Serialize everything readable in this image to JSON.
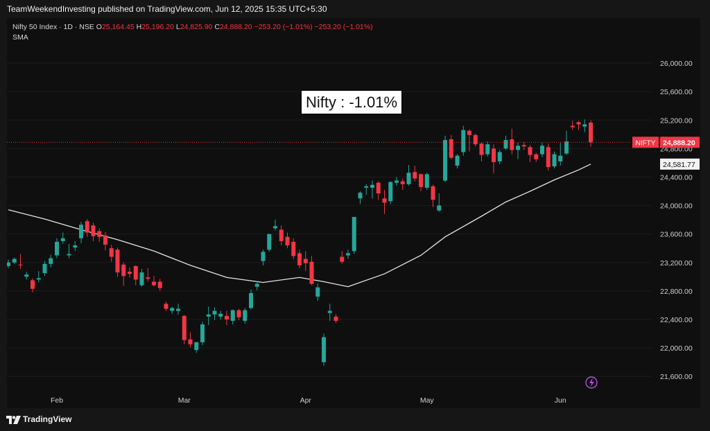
{
  "header": {
    "publish_line": "TeamWeekendInvesting published on TradingView.com, Jun 12, 2025 15:35 UTC+5:30"
  },
  "legend": {
    "symbol": "Nifty 50 Index · 1D · NSE",
    "o_label": "O",
    "o_value": "25,164.45",
    "h_label": "H",
    "h_value": "25,196.20",
    "l_label": "L",
    "l_value": "24,825.90",
    "c_label": "C",
    "c_value": "24,888.20",
    "change": "−253.20 (−1.01%)",
    "change2": "−253.20 (−1.01%)",
    "indicator": "SMA"
  },
  "annotation": {
    "text": "Nifty : -1.01%"
  },
  "footer": {
    "brand": "TradingView"
  },
  "colors": {
    "up": "#26a69a",
    "down": "#f23645",
    "sma": "#e6e6e6",
    "background": "#0f0f0f",
    "page": "#161616"
  },
  "chart_data": {
    "type": "candlestick",
    "symbol": "Nifty 50 Index",
    "interval": "1D",
    "ylim": [
      21300,
      26400
    ],
    "y_ticks": [
      21600,
      22000,
      22400,
      22800,
      23200,
      23600,
      24000,
      24400,
      24800,
      25200,
      25600,
      26000
    ],
    "y_tick_labels": [
      "21,600.00",
      "22,000.00",
      "22,400.00",
      "22,800.00",
      "23,200.00",
      "23,600.00",
      "24,000.00",
      "24,400.00",
      "24,800.00",
      "25,200.00",
      "25,600.00",
      "26,000.00"
    ],
    "x_labels": [
      {
        "label": "Feb",
        "index": 8
      },
      {
        "label": "Mar",
        "index": 29
      },
      {
        "label": "Apr",
        "index": 49
      },
      {
        "label": "May",
        "index": 69
      },
      {
        "label": "Jun",
        "index": 91
      }
    ],
    "candles": [
      [
        23150,
        23240,
        23120,
        23200
      ],
      [
        23200,
        23270,
        23180,
        23250
      ],
      [
        23170,
        23320,
        23110,
        23160
      ],
      [
        23000,
        23070,
        22960,
        23030
      ],
      [
        22950,
        22980,
        22780,
        22830
      ],
      [
        22960,
        23080,
        22920,
        22980
      ],
      [
        23050,
        23220,
        23010,
        23180
      ],
      [
        23180,
        23310,
        23130,
        23260
      ],
      [
        23300,
        23540,
        23260,
        23490
      ],
      [
        23500,
        23620,
        23460,
        23540
      ],
      [
        23300,
        23460,
        23260,
        23320
      ],
      [
        23410,
        23500,
        23360,
        23440
      ],
      [
        23540,
        23770,
        23470,
        23730
      ],
      [
        23780,
        23810,
        23560,
        23620
      ],
      [
        23720,
        23760,
        23500,
        23570
      ],
      [
        23640,
        23680,
        23490,
        23560
      ],
      [
        23580,
        23630,
        23370,
        23450
      ],
      [
        23400,
        23450,
        23210,
        23280
      ],
      [
        23380,
        23410,
        23000,
        23060
      ],
      [
        23170,
        23200,
        22870,
        23010
      ],
      [
        23070,
        23130,
        22990,
        23040
      ],
      [
        23150,
        23160,
        22880,
        22960
      ],
      [
        22880,
        23110,
        22860,
        23060
      ],
      [
        22990,
        23120,
        22930,
        22970
      ],
      [
        22930,
        23010,
        22860,
        22880
      ],
      [
        22930,
        22970,
        22800,
        22840
      ],
      [
        22620,
        22650,
        22520,
        22550
      ],
      [
        22520,
        22580,
        22480,
        22560
      ],
      [
        22520,
        22620,
        22470,
        22550
      ],
      [
        22450,
        22460,
        22050,
        22110
      ],
      [
        22120,
        22220,
        22010,
        22050
      ],
      [
        21970,
        22080,
        21930,
        22080
      ],
      [
        22080,
        22370,
        22040,
        22330
      ],
      [
        22440,
        22580,
        22320,
        22470
      ],
      [
        22470,
        22570,
        22390,
        22520
      ],
      [
        22440,
        22520,
        22400,
        22480
      ],
      [
        22450,
        22520,
        22320,
        22400
      ],
      [
        22380,
        22540,
        22330,
        22530
      ],
      [
        22530,
        22550,
        22390,
        22430
      ],
      [
        22380,
        22560,
        22340,
        22530
      ],
      [
        22560,
        22820,
        22540,
        22770
      ],
      [
        22860,
        22940,
        22810,
        22900
      ],
      [
        23220,
        23380,
        23160,
        23350
      ],
      [
        23380,
        23590,
        23350,
        23600
      ],
      [
        23680,
        23800,
        23650,
        23710
      ],
      [
        23660,
        23720,
        23440,
        23500
      ],
      [
        23560,
        23620,
        23400,
        23440
      ],
      [
        23490,
        23540,
        23250,
        23290
      ],
      [
        23330,
        23380,
        23120,
        23160
      ],
      [
        23250,
        23360,
        23080,
        23190
      ],
      [
        23210,
        23290,
        22880,
        22900
      ],
      [
        22720,
        22910,
        22660,
        22850
      ],
      [
        21800,
        22200,
        21750,
        22150
      ],
      [
        22490,
        22620,
        22380,
        22520
      ],
      [
        22440,
        22470,
        22350,
        22380
      ],
      [
        23280,
        23360,
        23180,
        23210
      ],
      [
        23300,
        23380,
        23250,
        23330
      ],
      [
        23360,
        23840,
        23320,
        23840
      ],
      [
        24100,
        24200,
        24020,
        24180
      ],
      [
        24250,
        24300,
        24150,
        24270
      ],
      [
        24250,
        24350,
        24100,
        24290
      ],
      [
        24320,
        24340,
        24080,
        24170
      ],
      [
        24100,
        24220,
        23880,
        24040
      ],
      [
        24060,
        24340,
        24020,
        24330
      ],
      [
        24320,
        24400,
        24280,
        24350
      ],
      [
        24340,
        24380,
        24220,
        24300
      ],
      [
        24300,
        24570,
        24280,
        24460
      ],
      [
        24470,
        24560,
        24340,
        24380
      ],
      [
        24440,
        24450,
        24200,
        24260
      ],
      [
        24250,
        24460,
        24220,
        24440
      ],
      [
        24270,
        24290,
        23980,
        24080
      ],
      [
        23930,
        24170,
        23910,
        24000
      ],
      [
        24350,
        24980,
        24330,
        24920
      ],
      [
        24930,
        24990,
        24650,
        24670
      ],
      [
        24560,
        24720,
        24520,
        24700
      ],
      [
        24750,
        25120,
        24700,
        25060
      ],
      [
        25050,
        25070,
        24760,
        24990
      ],
      [
        24990,
        25010,
        24830,
        24860
      ],
      [
        24870,
        24890,
        24620,
        24710
      ],
      [
        24720,
        24900,
        24690,
        24860
      ],
      [
        24800,
        24860,
        24450,
        24610
      ],
      [
        24620,
        24780,
        24580,
        24750
      ],
      [
        24800,
        24980,
        24780,
        24920
      ],
      [
        24930,
        25080,
        24720,
        24780
      ],
      [
        24780,
        24880,
        24650,
        24840
      ],
      [
        24850,
        24890,
        24780,
        24830
      ],
      [
        24820,
        24850,
        24610,
        24710
      ],
      [
        24720,
        24740,
        24610,
        24650
      ],
      [
        24720,
        24880,
        24680,
        24840
      ],
      [
        24820,
        24870,
        24490,
        24540
      ],
      [
        24550,
        24760,
        24520,
        24720
      ],
      [
        24620,
        24880,
        24560,
        24700
      ],
      [
        24730,
        25050,
        24710,
        24900
      ],
      [
        25120,
        25190,
        25060,
        25100
      ],
      [
        25170,
        25190,
        25060,
        25140
      ],
      [
        25110,
        25210,
        25030,
        25140
      ],
      [
        25164.45,
        25196.2,
        24825.9,
        24888.2
      ]
    ],
    "sma": [
      [
        0,
        23940
      ],
      [
        6,
        23810
      ],
      [
        12,
        23660
      ],
      [
        18,
        23520
      ],
      [
        24,
        23360
      ],
      [
        30,
        23160
      ],
      [
        36,
        22990
      ],
      [
        42,
        22920
      ],
      [
        48,
        22990
      ],
      [
        52,
        22930
      ],
      [
        56,
        22860
      ],
      [
        62,
        23040
      ],
      [
        68,
        23300
      ],
      [
        72,
        23560
      ],
      [
        78,
        23850
      ],
      [
        82,
        24050
      ],
      [
        86,
        24200
      ],
      [
        90,
        24360
      ],
      [
        94,
        24500
      ],
      [
        96,
        24581.77
      ]
    ],
    "last_price": {
      "value": 24888.2,
      "label": "24,888.20",
      "tag": "NIFTY"
    },
    "sma_last": {
      "value": 24581.77,
      "label": "24,581.77"
    }
  }
}
